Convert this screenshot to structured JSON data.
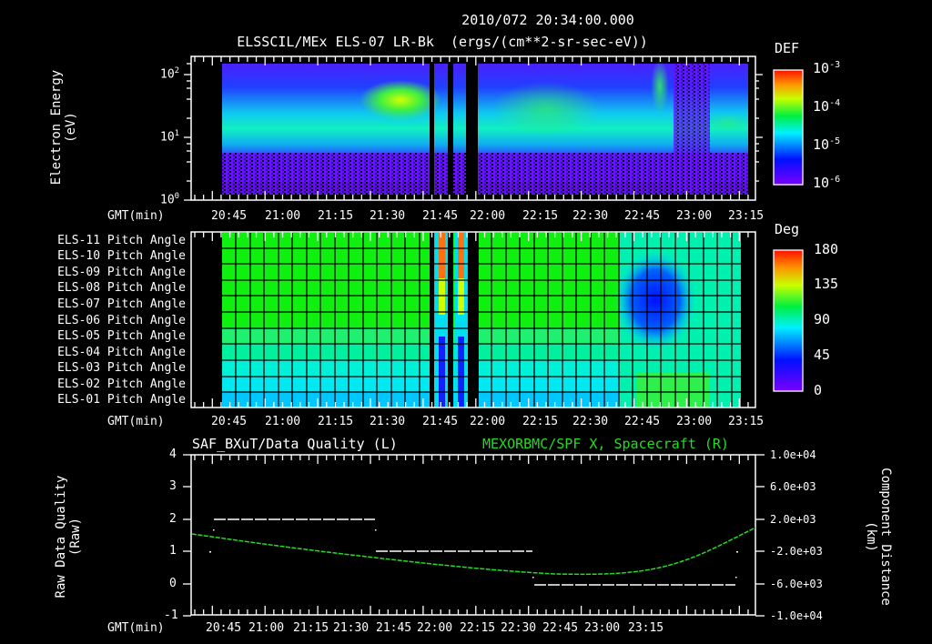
{
  "header": {
    "timestamp": "2010/072 20:34:00.000",
    "title": "ELSSCIL/MEx ELS-07 LR-Bk  (ergs/(cm**2-sr-sec-eV))"
  },
  "colors": {
    "background": "#000000",
    "axis": "#ffffff",
    "right_series": "#22dd22",
    "left_series": "#ffffff"
  },
  "time_axis": {
    "label": "GMT(min)",
    "ticks": [
      "20:45",
      "21:00",
      "21:15",
      "21:30",
      "21:45",
      "22:00",
      "22:15",
      "22:30",
      "22:45",
      "23:00",
      "23:15"
    ]
  },
  "panel1": {
    "ylabel_line1": "Electron Energy",
    "ylabel_line2": "(eV)",
    "yticks": [
      {
        "base": "10",
        "exp": "2"
      },
      {
        "base": "10",
        "exp": "1"
      },
      {
        "base": "10",
        "exp": "0"
      }
    ],
    "colorbar": {
      "title": "DEF",
      "ticks": [
        {
          "base": "10",
          "exp": "-3"
        },
        {
          "base": "10",
          "exp": "-4"
        },
        {
          "base": "10",
          "exp": "-5"
        },
        {
          "base": "10",
          "exp": "-6"
        }
      ]
    }
  },
  "panel2": {
    "rows": [
      "ELS-11 Pitch Angle",
      "ELS-10 Pitch Angle",
      "ELS-09 Pitch Angle",
      "ELS-08 Pitch Angle",
      "ELS-07 Pitch Angle",
      "ELS-06 Pitch Angle",
      "ELS-05 Pitch Angle",
      "ELS-04 Pitch Angle",
      "ELS-03 Pitch Angle",
      "ELS-02 Pitch Angle",
      "ELS-01 Pitch Angle"
    ],
    "colorbar": {
      "title": "Deg",
      "ticks": [
        "180",
        "135",
        "90",
        "45",
        "0"
      ]
    }
  },
  "panel3": {
    "left_title": "SAF_BXuT/Data Quality (L)",
    "right_title": "MEXORBMC/SPF X, Spacecraft (R)",
    "ylabel_left_line1": "Raw Data Quality",
    "ylabel_left_line2": "(Raw)",
    "ylabel_right_line1": "Component Distance",
    "ylabel_right_line2": "(km)",
    "yticks_left": [
      "4",
      "3",
      "2",
      "1",
      "0",
      "-1"
    ],
    "yticks_right": [
      "1.0e+04",
      "6.0e+03",
      "2.0e+03",
      "-2.0e+03",
      "-6.0e+03",
      "-1.0e+04"
    ]
  },
  "chart_data": [
    {
      "type": "heatmap",
      "title": "ELSSCIL/MEx ELS-07 LR-Bk (ergs/(cm**2-sr-sec-eV))",
      "subtitle": "2010/072 20:34:00.000",
      "xlabel": "GMT(min)",
      "ylabel": "Electron Energy (eV)",
      "x_ticks": [
        "20:45",
        "21:00",
        "21:15",
        "21:30",
        "21:45",
        "22:00",
        "22:15",
        "22:30",
        "22:45",
        "23:00",
        "23:15"
      ],
      "yscale": "log",
      "ylim": [
        1,
        150
      ],
      "colorbar": {
        "label": "DEF",
        "scale": "log",
        "range": [
          1e-06,
          0.001
        ]
      },
      "notes": "Peak flux band ~10-30 eV; enhanced (green/yellow) near 21:30-21:45 at ~30-50 eV; data gaps near 21:45, 21:50, 21:55; sparse data 22:50-23:05"
    },
    {
      "type": "heatmap",
      "title": "ELS Pitch Angle",
      "xlabel": "GMT(min)",
      "categories": [
        "ELS-11",
        "ELS-10",
        "ELS-09",
        "ELS-08",
        "ELS-07",
        "ELS-06",
        "ELS-05",
        "ELS-04",
        "ELS-03",
        "ELS-02",
        "ELS-01"
      ],
      "colorbar": {
        "label": "Deg",
        "range": [
          0,
          180
        ],
        "ticks": [
          0,
          45,
          90,
          135,
          180
        ]
      },
      "notes": "Anodes 11-05 ~100 deg (green), 04-01 ~60-75 deg (cyan); depression to ~30 deg for ELS-09..06 around 22:45-23:00"
    },
    {
      "type": "line",
      "xlabel": "GMT(min)",
      "x_ticks": [
        "20:45",
        "21:00",
        "21:15",
        "21:30",
        "21:45",
        "22:00",
        "22:15",
        "22:30",
        "22:45",
        "23:00",
        "23:15"
      ],
      "series": [
        {
          "name": "SAF_BXuT/Data Quality (L)",
          "axis": "left",
          "x": [
            "20:44",
            "21:29",
            "21:29",
            "22:14",
            "22:14",
            "23:14"
          ],
          "values": [
            2,
            2,
            1,
            1,
            0,
            0
          ]
        },
        {
          "name": "MEXORBMC/SPF X, Spacecraft (R)",
          "axis": "right",
          "x": [
            "20:36",
            "21:00",
            "21:30",
            "22:00",
            "22:15",
            "22:30",
            "22:45",
            "23:00",
            "23:15",
            "23:20"
          ],
          "values": [
            1000,
            -200,
            -1600,
            -3000,
            -3800,
            -4000,
            -3500,
            -2000,
            500,
            1000
          ]
        }
      ],
      "ylim_left": [
        -1,
        4
      ],
      "ylim_right": [
        -10000,
        10000
      ],
      "ylabel_left": "Raw Data Quality (Raw)",
      "ylabel_right": "Component Distance (km)"
    }
  ]
}
